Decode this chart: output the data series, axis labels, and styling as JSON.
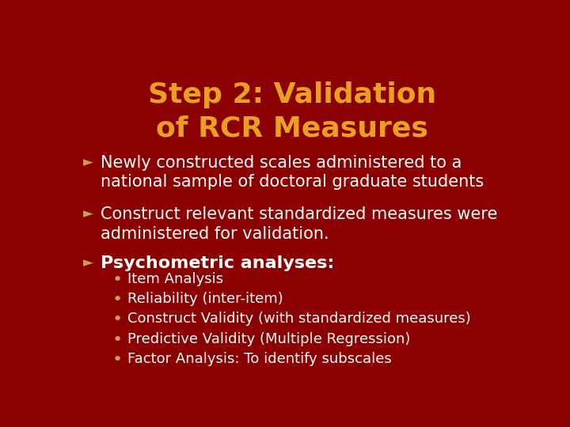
{
  "title_line1": "Step 2: Validation",
  "title_line2": "of RCR Measures",
  "title_color": "#E8A020",
  "background_color": "#8B0000",
  "text_color": "#FFFFFF",
  "bullet_color": "#C8A050",
  "title_fontsize": 26,
  "body_fontsize": 15,
  "sub_fontsize": 13,
  "psych_fontsize": 16,
  "main_bullet1": "Newly constructed scales administered to a\nnational sample of doctoral graduate students",
  "main_bullet2": "Construct relevant standardized measures were\nadministered for validation.",
  "main_bullet3": "Psychometric analyses:",
  "sub_bullets": [
    "Item Analysis",
    "Reliability (inter-item)",
    "Construct Validity (with standardized measures)",
    "Predictive Validity (Multiple Regression)",
    "Factor Analysis: To identify subscales"
  ]
}
